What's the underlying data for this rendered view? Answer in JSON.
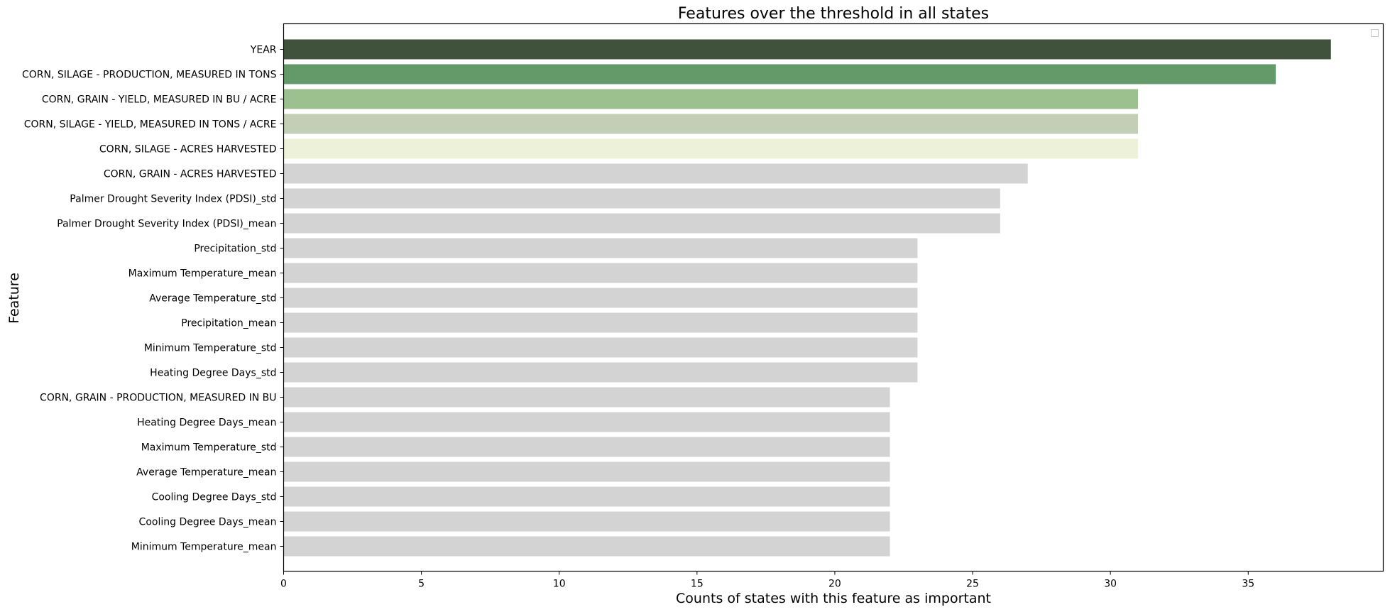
{
  "chart_data": {
    "type": "bar",
    "orientation": "horizontal",
    "title": "Features over the threshold in all states",
    "xlabel": "Counts of states with this feature as important",
    "ylabel": "Feature",
    "xlim": [
      0,
      40
    ],
    "xticks": [
      0,
      5,
      10,
      15,
      20,
      25,
      30,
      35
    ],
    "grid": false,
    "legend": "top-right (empty)",
    "categories": [
      "YEAR",
      "CORN, SILAGE - PRODUCTION, MEASURED IN TONS",
      "CORN, GRAIN - YIELD, MEASURED IN BU / ACRE",
      "CORN, SILAGE - YIELD, MEASURED IN TONS / ACRE",
      "CORN, SILAGE - ACRES HARVESTED",
      "CORN, GRAIN - ACRES HARVESTED",
      "Palmer Drought Severity Index (PDSI)_std",
      "Palmer Drought Severity Index (PDSI)_mean",
      "Precipitation_std",
      "Maximum Temperature_mean",
      "Average Temperature_std",
      "Precipitation_mean",
      "Minimum Temperature_std",
      "Heating Degree Days_std",
      "CORN, GRAIN - PRODUCTION, MEASURED IN BU",
      "Heating Degree Days_mean",
      "Maximum Temperature_std",
      "Average Temperature_mean",
      "Cooling Degree Days_std",
      "Cooling Degree Days_mean",
      "Minimum Temperature_mean"
    ],
    "values": [
      38,
      36,
      31,
      31,
      31,
      27,
      26,
      26,
      23,
      23,
      23,
      23,
      23,
      23,
      22,
      22,
      22,
      22,
      22,
      22,
      22
    ],
    "colors": [
      "#40523b",
      "#649a6a",
      "#9dc08f",
      "#c2ceb6",
      "#edf1d8",
      "#d3d3d3",
      "#d3d3d3",
      "#d3d3d3",
      "#d3d3d3",
      "#d3d3d3",
      "#d3d3d3",
      "#d3d3d3",
      "#d3d3d3",
      "#d3d3d3",
      "#d3d3d3",
      "#d3d3d3",
      "#d3d3d3",
      "#d3d3d3",
      "#d3d3d3",
      "#d3d3d3",
      "#d3d3d3"
    ]
  }
}
